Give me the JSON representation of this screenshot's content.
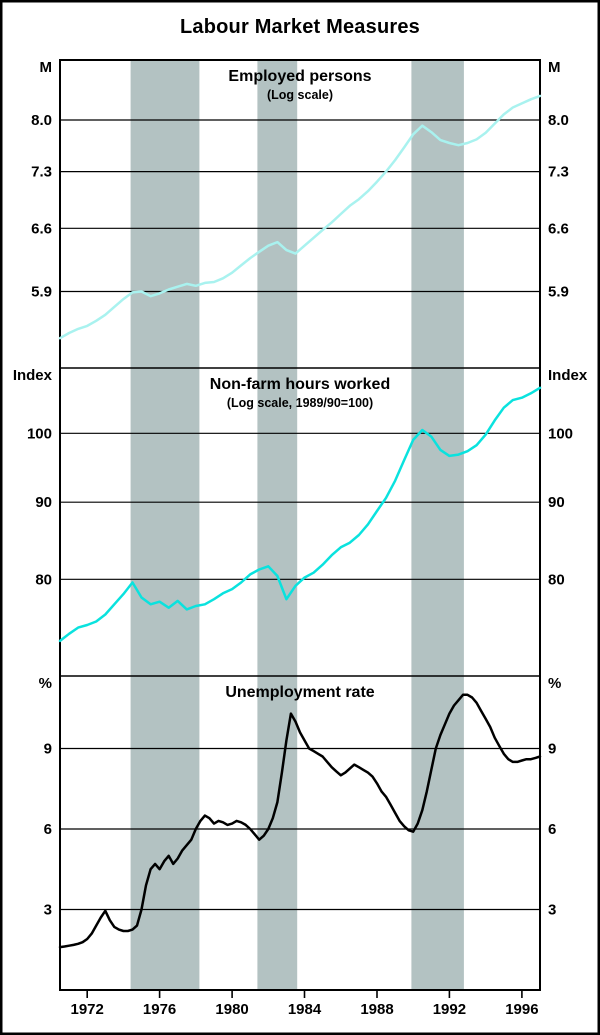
{
  "title": "Labour Market Measures",
  "colors": {
    "background": "#ffffff",
    "band": "#b3c2c2",
    "grid": "#000000",
    "employed_line": "#a9f2ef",
    "hours_line": "#0ae2de",
    "unemployment_line": "#000000"
  },
  "x_axis": {
    "domain": [
      1970.5,
      1997.0
    ],
    "ticks": [
      1972,
      1976,
      1980,
      1984,
      1988,
      1992,
      1996
    ]
  },
  "recession_bands": [
    [
      1974.4,
      1978.2
    ],
    [
      1981.4,
      1983.6
    ],
    [
      1989.9,
      1992.8
    ]
  ],
  "chart_data": [
    {
      "type": "line",
      "name": "employed-persons",
      "title": "Employed persons",
      "subtitle": "(Log scale)",
      "unit": "M",
      "scale": "log",
      "ylim": [
        5.15,
        8.9
      ],
      "yticks": [
        {
          "v": 8.0,
          "label": "8.0"
        },
        {
          "v": 7.3,
          "label": "7.3"
        },
        {
          "v": 6.6,
          "label": "6.6"
        },
        {
          "v": 5.9,
          "label": "5.9"
        }
      ],
      "series": {
        "x_start": 1970.5,
        "x_step": 0.5,
        "color_key": "employed_line",
        "values": [
          5.43,
          5.48,
          5.52,
          5.55,
          5.6,
          5.66,
          5.74,
          5.82,
          5.89,
          5.9,
          5.85,
          5.88,
          5.92,
          5.95,
          5.98,
          5.96,
          5.99,
          6.0,
          6.04,
          6.1,
          6.18,
          6.26,
          6.33,
          6.4,
          6.44,
          6.35,
          6.31,
          6.4,
          6.49,
          6.58,
          6.67,
          6.77,
          6.87,
          6.95,
          7.05,
          7.17,
          7.3,
          7.45,
          7.62,
          7.8,
          7.92,
          7.83,
          7.72,
          7.68,
          7.65,
          7.68,
          7.73,
          7.82,
          7.95,
          8.08,
          8.18,
          8.24,
          8.3,
          8.35
        ]
      }
    },
    {
      "type": "line",
      "name": "non-farm-hours-worked",
      "title": "Non-farm hours worked",
      "subtitle": "(Log scale, 1989/90=100)",
      "unit": "Index",
      "scale": "log",
      "ylim": [
        69,
        110.5
      ],
      "yticks": [
        {
          "v": 100,
          "label": "100"
        },
        {
          "v": 90,
          "label": "90"
        },
        {
          "v": 80,
          "label": "80"
        }
      ],
      "series": {
        "x_start": 1970.5,
        "x_step": 0.5,
        "color_key": "hours_line",
        "values": [
          72.8,
          73.6,
          74.3,
          74.6,
          75.0,
          75.8,
          77.0,
          78.2,
          79.6,
          77.8,
          77.0,
          77.3,
          76.6,
          77.4,
          76.4,
          76.8,
          77.0,
          77.6,
          78.3,
          78.8,
          79.6,
          80.6,
          81.2,
          81.6,
          80.4,
          77.6,
          79.2,
          80.2,
          80.8,
          81.8,
          83.0,
          84.0,
          84.6,
          85.6,
          87.0,
          88.8,
          90.6,
          93.0,
          96.0,
          99.0,
          100.5,
          99.5,
          97.5,
          96.6,
          96.8,
          97.3,
          98.2,
          99.8,
          102.0,
          104.0,
          105.2,
          105.6,
          106.3,
          107.2
        ]
      }
    },
    {
      "type": "line",
      "name": "unemployment-rate",
      "title": "Unemployment rate",
      "subtitle": "",
      "unit": "%",
      "scale": "linear",
      "ylim": [
        0,
        11.7
      ],
      "yticks": [
        {
          "v": 9,
          "label": "9"
        },
        {
          "v": 6,
          "label": "6"
        },
        {
          "v": 3,
          "label": "3"
        }
      ],
      "series": {
        "x_start": 1970.5,
        "x_step": 0.25,
        "color_key": "unemployment_line",
        "values": [
          1.6,
          1.62,
          1.65,
          1.68,
          1.72,
          1.78,
          1.9,
          2.1,
          2.4,
          2.7,
          2.95,
          2.6,
          2.35,
          2.25,
          2.2,
          2.2,
          2.25,
          2.4,
          3.0,
          3.9,
          4.5,
          4.7,
          4.5,
          4.8,
          5.0,
          4.7,
          4.9,
          5.2,
          5.4,
          5.6,
          6.0,
          6.3,
          6.5,
          6.4,
          6.2,
          6.3,
          6.25,
          6.15,
          6.2,
          6.3,
          6.25,
          6.15,
          6.0,
          5.8,
          5.6,
          5.75,
          6.0,
          6.4,
          7.0,
          8.1,
          9.3,
          10.3,
          10.0,
          9.6,
          9.3,
          9.0,
          8.9,
          8.8,
          8.7,
          8.5,
          8.3,
          8.15,
          8.0,
          8.1,
          8.25,
          8.4,
          8.3,
          8.2,
          8.1,
          7.95,
          7.7,
          7.4,
          7.2,
          6.9,
          6.6,
          6.3,
          6.1,
          5.95,
          5.9,
          6.2,
          6.7,
          7.4,
          8.2,
          9.0,
          9.5,
          9.9,
          10.3,
          10.6,
          10.8,
          11.0,
          11.0,
          10.9,
          10.7,
          10.4,
          10.1,
          9.8,
          9.4,
          9.1,
          8.8,
          8.6,
          8.5,
          8.5,
          8.55,
          8.6,
          8.6,
          8.65,
          8.7
        ]
      }
    }
  ]
}
